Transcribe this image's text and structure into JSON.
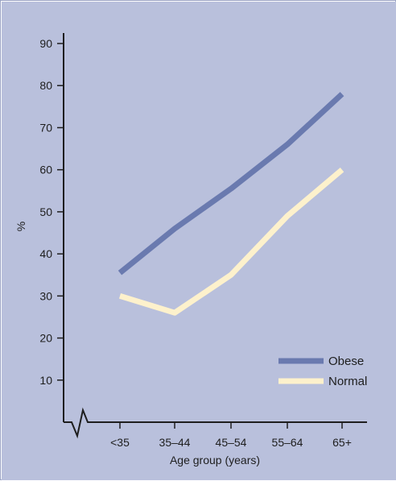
{
  "chart_data": {
    "type": "line",
    "title": "",
    "xlabel": "Age group (years)",
    "ylabel": "%",
    "categories": [
      "<35",
      "35–44",
      "45–54",
      "55–64",
      "65+"
    ],
    "ylim": [
      0,
      90
    ],
    "yticks": [
      10,
      20,
      30,
      40,
      50,
      60,
      70,
      80,
      90
    ],
    "axis_break": true,
    "grid": false,
    "legend_position": "bottom-right",
    "series": [
      {
        "name": "Obese",
        "values": [
          35.5,
          46,
          55.5,
          66,
          78
        ],
        "color": "#6a7aaf"
      },
      {
        "name": "Normal",
        "values": [
          30,
          26,
          35,
          49,
          60
        ],
        "color": "#fdf1cc"
      }
    ]
  },
  "colors": {
    "background": "#b9c0dc",
    "axis": "#1e1e1e"
  }
}
